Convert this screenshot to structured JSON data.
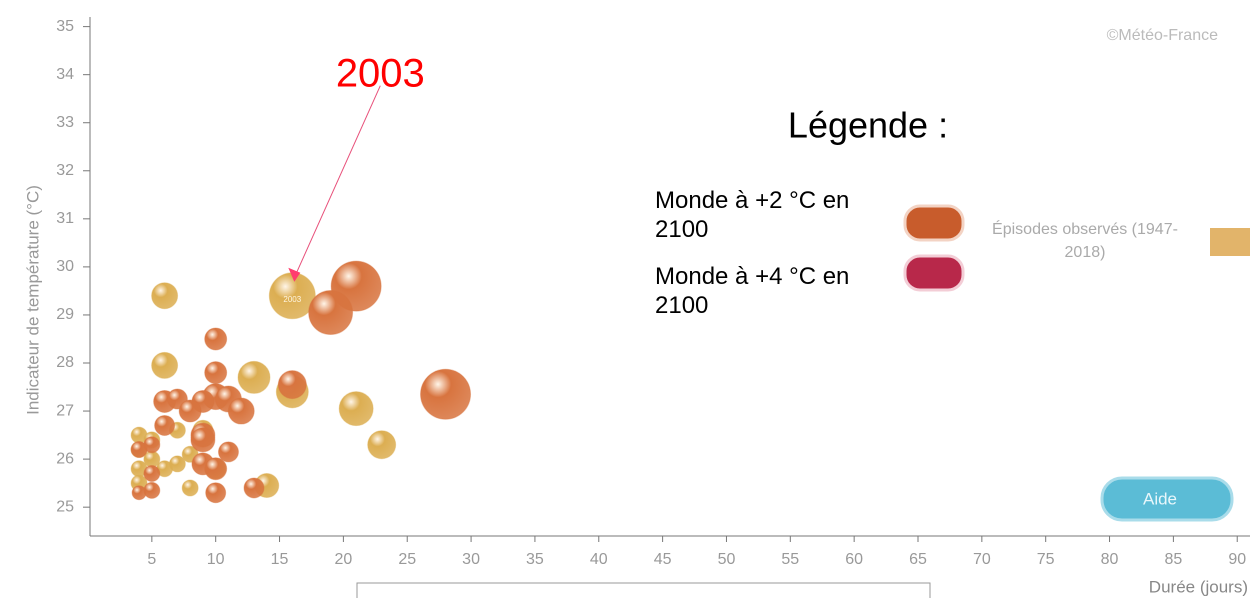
{
  "chart_data": {
    "type": "scatter",
    "credit": "©Météo-France",
    "xlabel": "Durée (jours)",
    "ylabel": "Indicateur de température (°C)",
    "legend_title": "Légende :",
    "button": "Aide",
    "annotation": {
      "text": "2003",
      "x": 16,
      "y": 29.4
    },
    "bubble_label": {
      "text": "2003",
      "x": 16,
      "y": 29.4
    },
    "xlim": [
      0,
      91
    ],
    "ylim": [
      24.4,
      35.2
    ],
    "xticks": [
      5,
      10,
      15,
      20,
      25,
      30,
      35,
      40,
      45,
      50,
      55,
      60,
      65,
      70,
      75,
      80,
      85,
      90
    ],
    "yticks": [
      25,
      26,
      27,
      28,
      29,
      30,
      31,
      32,
      33,
      34,
      35
    ],
    "series": [
      {
        "name": "Épisodes observés (1947-2018)",
        "color": "#dcae52",
        "x": [
          16,
          6,
          6,
          13,
          21,
          23,
          16,
          14,
          4,
          4,
          4,
          4,
          5,
          5,
          6,
          7,
          8,
          8,
          9,
          10,
          7
        ],
        "values": [
          29.4,
          29.4,
          27.95,
          27.7,
          27.05,
          26.3,
          27.4,
          25.45,
          26.5,
          26.2,
          25.8,
          25.5,
          26.4,
          26.0,
          25.8,
          25.9,
          25.4,
          26.1,
          26.6,
          25.8,
          26.6
        ],
        "sizes": [
          23,
          13,
          13,
          16,
          17,
          14,
          16,
          12,
          8,
          8,
          8,
          8,
          8,
          8,
          8,
          8,
          8,
          8,
          10,
          10,
          8
        ]
      },
      {
        "name": "Monde à +2 °C en 2100",
        "color": "#d8743f",
        "x": [
          21,
          19,
          28,
          16,
          10,
          10,
          10,
          11,
          12,
          9,
          6,
          7,
          8,
          6,
          9,
          9,
          9,
          10,
          11,
          13,
          4,
          5,
          5,
          4,
          5,
          10
        ],
        "values": [
          29.6,
          29.05,
          27.35,
          27.55,
          28.5,
          27.8,
          27.3,
          27.25,
          27.0,
          27.2,
          27.2,
          27.25,
          27.0,
          26.7,
          26.5,
          26.4,
          25.9,
          25.3,
          26.15,
          25.4,
          26.2,
          26.3,
          25.7,
          25.3,
          25.35,
          25.8
        ],
        "sizes": [
          25,
          22,
          25,
          14,
          11,
          11,
          13,
          13,
          13,
          11,
          11,
          10,
          11,
          10,
          12,
          12,
          11,
          10,
          10,
          10,
          8,
          8,
          8,
          7,
          8,
          11
        ]
      },
      {
        "name": "Monde à +4 °C en 2100",
        "color": "#c0304f",
        "x": [],
        "values": [],
        "sizes": []
      }
    ]
  }
}
